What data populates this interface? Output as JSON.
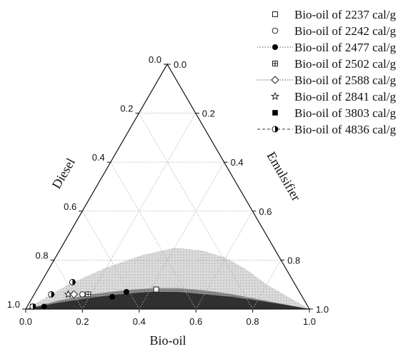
{
  "chart_data": {
    "type": "scatter",
    "subtype": "ternary",
    "axes": {
      "bottom": {
        "label": "Bio-oil",
        "ticks": [
          "0.0",
          "0.2",
          "0.4",
          "0.6",
          "0.8",
          "1.0"
        ]
      },
      "left": {
        "label": "Diesel",
        "ticks": [
          "0.0",
          "0.2",
          "0.4",
          "0.6",
          "0.8",
          "1.0"
        ]
      },
      "right": {
        "label": "Emulsifier",
        "ticks": [
          "1.0",
          "0.8",
          "0.6",
          "0.4",
          "0.2",
          "0.0"
        ]
      }
    },
    "grid": true,
    "legend_position": "top-right",
    "regions": [
      {
        "pattern": "light-dotted",
        "color": "#cfcfcf",
        "boundary": [
          {
            "bio_oil": 0.0,
            "emulsifier": 0.0
          },
          {
            "bio_oil": 0.1,
            "emulsifier": 0.1
          },
          {
            "bio_oil": 0.2,
            "emulsifier": 0.17
          },
          {
            "bio_oil": 0.3,
            "emulsifier": 0.22
          },
          {
            "bio_oil": 0.4,
            "emulsifier": 0.25
          },
          {
            "bio_oil": 0.5,
            "emulsifier": 0.24
          },
          {
            "bio_oil": 0.6,
            "emulsifier": 0.21
          },
          {
            "bio_oil": 0.7,
            "emulsifier": 0.16
          },
          {
            "bio_oil": 0.8,
            "emulsifier": 0.1
          },
          {
            "bio_oil": 0.9,
            "emulsifier": 0.05
          },
          {
            "bio_oil": 1.0,
            "emulsifier": 0.0
          }
        ]
      },
      {
        "pattern": "medium-gray",
        "color": "#8a8a8a",
        "boundary": [
          {
            "bio_oil": 0.0,
            "emulsifier": 0.0
          },
          {
            "bio_oil": 0.1,
            "emulsifier": 0.035
          },
          {
            "bio_oil": 0.2,
            "emulsifier": 0.06
          },
          {
            "bio_oil": 0.3,
            "emulsifier": 0.075
          },
          {
            "bio_oil": 0.4,
            "emulsifier": 0.085
          },
          {
            "bio_oil": 0.5,
            "emulsifier": 0.085
          },
          {
            "bio_oil": 0.6,
            "emulsifier": 0.075
          },
          {
            "bio_oil": 0.7,
            "emulsifier": 0.06
          },
          {
            "bio_oil": 0.8,
            "emulsifier": 0.04
          },
          {
            "bio_oil": 0.9,
            "emulsifier": 0.02
          },
          {
            "bio_oil": 1.0,
            "emulsifier": 0.0
          }
        ]
      },
      {
        "pattern": "dark-crosshatch",
        "color": "#3a3a3a",
        "boundary": [
          {
            "bio_oil": 0.0,
            "emulsifier": 0.0
          },
          {
            "bio_oil": 0.1,
            "emulsifier": 0.025
          },
          {
            "bio_oil": 0.2,
            "emulsifier": 0.045
          },
          {
            "bio_oil": 0.3,
            "emulsifier": 0.06
          },
          {
            "bio_oil": 0.4,
            "emulsifier": 0.07
          },
          {
            "bio_oil": 0.5,
            "emulsifier": 0.07
          },
          {
            "bio_oil": 0.6,
            "emulsifier": 0.06
          },
          {
            "bio_oil": 0.7,
            "emulsifier": 0.05
          },
          {
            "bio_oil": 0.8,
            "emulsifier": 0.035
          },
          {
            "bio_oil": 0.9,
            "emulsifier": 0.018
          },
          {
            "bio_oil": 1.0,
            "emulsifier": 0.0
          }
        ]
      }
    ],
    "series": [
      {
        "name": "Bio-oil of 2237 cal/g",
        "marker": "open-square",
        "line": "none",
        "points": [
          {
            "bio_oil": 0.42,
            "emulsifier": 0.08
          }
        ]
      },
      {
        "name": "Bio-oil of 2242 cal/g",
        "marker": "open-circle",
        "line": "none",
        "points": [
          {
            "bio_oil": 0.17,
            "emulsifier": 0.06
          }
        ]
      },
      {
        "name": "Bio-oil of 2477 cal/g",
        "marker": "filled-circle",
        "line": "dotted",
        "points": [
          {
            "bio_oil": 0.02,
            "emulsifier": 0.01
          },
          {
            "bio_oil": 0.06,
            "emulsifier": 0.01
          },
          {
            "bio_oil": 0.28,
            "emulsifier": 0.05
          },
          {
            "bio_oil": 0.32,
            "emulsifier": 0.07
          }
        ]
      },
      {
        "name": "Bio-oil of 2502 cal/g",
        "marker": "crossed-square",
        "line": "none",
        "points": [
          {
            "bio_oil": 0.19,
            "emulsifier": 0.06
          }
        ]
      },
      {
        "name": "Bio-oil of 2588 cal/g",
        "marker": "open-diamond",
        "line": "dotted",
        "points": [
          {
            "bio_oil": 0.14,
            "emulsifier": 0.06
          }
        ]
      },
      {
        "name": "Bio-oil of 2841 cal/g",
        "marker": "open-star",
        "line": "none",
        "points": [
          {
            "bio_oil": 0.12,
            "emulsifier": 0.06
          }
        ]
      },
      {
        "name": "Bio-oil of 3803 cal/g",
        "marker": "filled-square",
        "line": "none",
        "points": [
          {
            "bio_oil": 0.02,
            "emulsifier": 0.01
          }
        ]
      },
      {
        "name": "Bio-oil of 4836 cal/g",
        "marker": "half-filled-circle",
        "line": "dashed",
        "points": [
          {
            "bio_oil": 0.02,
            "emulsifier": 0.01
          },
          {
            "bio_oil": 0.06,
            "emulsifier": 0.06
          },
          {
            "bio_oil": 0.11,
            "emulsifier": 0.11
          }
        ]
      }
    ]
  }
}
